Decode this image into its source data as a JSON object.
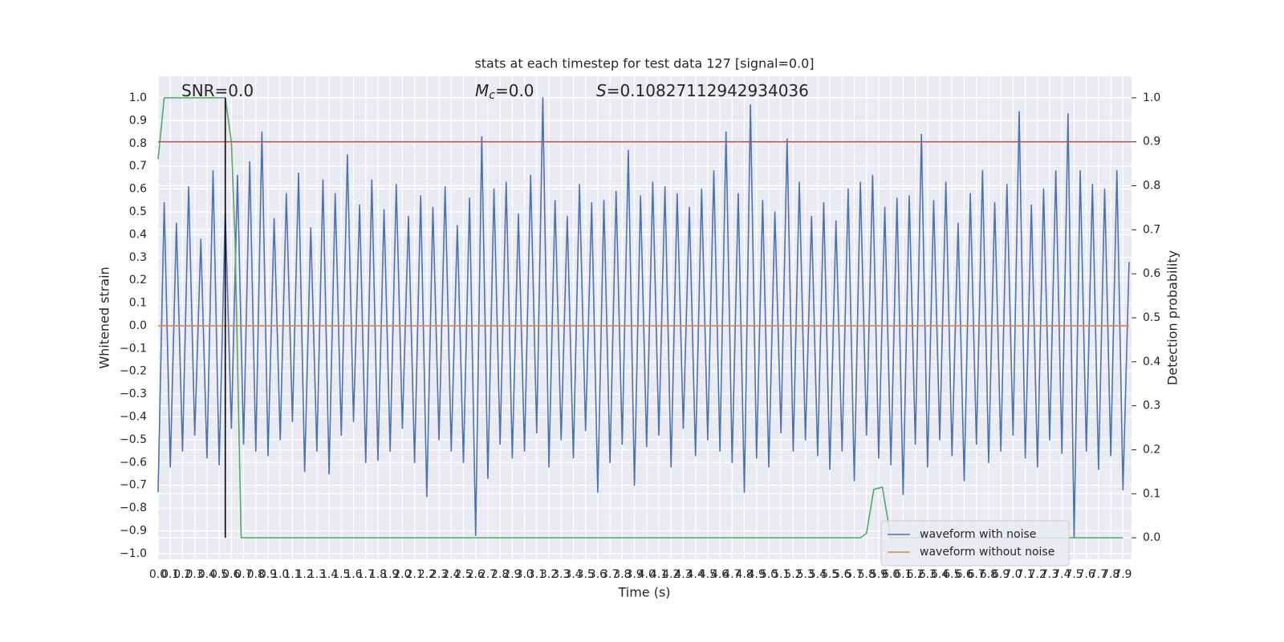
{
  "chart_data": {
    "type": "line",
    "title": "stats at each timestep for test data 127 [signal=0.0]",
    "xlabel": "Time (s)",
    "ylabel": "Whitened strain",
    "y2label": "Detection probability",
    "xlim": [
      0,
      7.97
    ],
    "ylim": [
      -1.025,
      1.095
    ],
    "y2lim": [
      -0.049,
      1.049
    ],
    "grid": true,
    "legend": "lower right",
    "xticks": [
      {
        "value": 0,
        "label": "0.0"
      },
      0.1,
      0.2,
      0.3,
      0.4,
      0.5,
      0.6,
      0.7,
      0.8,
      0.9,
      {
        "value": 1,
        "label": "1.0"
      },
      1.1,
      1.2,
      1.3,
      1.4,
      1.5,
      1.6,
      1.7,
      1.8,
      1.9,
      {
        "value": 2,
        "label": "2.0"
      },
      2.1,
      2.2,
      2.3,
      2.4,
      2.5,
      2.6,
      2.7,
      2.8,
      2.9,
      {
        "value": 3,
        "label": "3.0"
      },
      3.1,
      3.2,
      3.3,
      3.4,
      3.5,
      3.6,
      3.7,
      3.8,
      3.9,
      {
        "value": 4,
        "label": "4.0"
      },
      4.1,
      4.2,
      4.3,
      4.4,
      4.5,
      4.6,
      4.7,
      4.8,
      4.9,
      {
        "value": 5,
        "label": "5.0"
      },
      5.1,
      5.2,
      5.3,
      5.4,
      5.5,
      5.6,
      5.7,
      5.8,
      5.9,
      {
        "value": 6,
        "label": "6.0"
      },
      6.1,
      6.2,
      6.3,
      6.4,
      6.5,
      6.6,
      6.7,
      6.8,
      6.9,
      {
        "value": 7,
        "label": "7.0"
      },
      7.1,
      7.2,
      7.3,
      7.4,
      7.5,
      7.6,
      7.7,
      7.8,
      7.9
    ],
    "yticks": [
      {
        "value": -1,
        "label": "−1.0"
      },
      {
        "value": -0.9,
        "label": "−0.9"
      },
      {
        "value": -0.8,
        "label": "−0.8"
      },
      {
        "value": -0.7,
        "label": "−0.7"
      },
      {
        "value": -0.6,
        "label": "−0.6"
      },
      {
        "value": -0.5,
        "label": "−0.5"
      },
      {
        "value": -0.4,
        "label": "−0.4"
      },
      {
        "value": -0.3,
        "label": "−0.3"
      },
      {
        "value": -0.2,
        "label": "−0.2"
      },
      {
        "value": -0.1,
        "label": "−0.1"
      },
      {
        "value": 0,
        "label": "0.0"
      },
      0.1,
      0.2,
      0.3,
      0.4,
      0.5,
      0.6,
      0.7,
      0.8,
      0.9,
      {
        "value": 1,
        "label": "1.0"
      }
    ],
    "y2ticks": [
      {
        "value": 0,
        "label": "0.0"
      },
      0.1,
      0.2,
      0.3,
      0.4,
      0.5,
      0.6,
      0.7,
      0.8,
      0.9,
      {
        "value": 1,
        "label": "1.0"
      }
    ],
    "series": [
      {
        "name": "waveform with noise",
        "color": "#4c72b0",
        "x": [
          0,
          0.05,
          0.1,
          0.15,
          0.2,
          0.25,
          0.3,
          0.35,
          0.4,
          0.45,
          0.5,
          0.55,
          0.6,
          0.65,
          0.7,
          0.75,
          0.8,
          0.85,
          0.9,
          0.95,
          1,
          1.05,
          1.1,
          1.15,
          1.2,
          1.25,
          1.3,
          1.35,
          1.4,
          1.45,
          1.5,
          1.55,
          1.6,
          1.65,
          1.7,
          1.75,
          1.8,
          1.85,
          1.9,
          1.95,
          2,
          2.05,
          2.1,
          2.15,
          2.2,
          2.25,
          2.3,
          2.35,
          2.4,
          2.45,
          2.5,
          2.55,
          2.6,
          2.65,
          2.7,
          2.75,
          2.8,
          2.85,
          2.9,
          2.95,
          3,
          3.05,
          3.1,
          3.15,
          3.2,
          3.25,
          3.3,
          3.35,
          3.4,
          3.45,
          3.5,
          3.55,
          3.6,
          3.65,
          3.7,
          3.75,
          3.8,
          3.85,
          3.9,
          3.95,
          4,
          4.05,
          4.1,
          4.15,
          4.2,
          4.25,
          4.3,
          4.35,
          4.4,
          4.45,
          4.5,
          4.55,
          4.6,
          4.65,
          4.7,
          4.75,
          4.8,
          4.85,
          4.9,
          4.95,
          5,
          5.05,
          5.1,
          5.15,
          5.2,
          5.25,
          5.3,
          5.35,
          5.4,
          5.45,
          5.5,
          5.55,
          5.6,
          5.65,
          5.7,
          5.75,
          5.8,
          5.85,
          5.9,
          5.95,
          6,
          6.05,
          6.1,
          6.15,
          6.2,
          6.25,
          6.3,
          6.35,
          6.4,
          6.45,
          6.5,
          6.55,
          6.6,
          6.65,
          6.7,
          6.75,
          6.8,
          6.85,
          6.9,
          6.95,
          7,
          7.05,
          7.1,
          7.15,
          7.2,
          7.25,
          7.3,
          7.35,
          7.4,
          7.45,
          7.5,
          7.55,
          7.6,
          7.65,
          7.7,
          7.75,
          7.8,
          7.85,
          7.9,
          7.95
        ],
        "values": [
          -0.73,
          0.54,
          -0.62,
          0.45,
          -0.55,
          0.61,
          -0.48,
          0.38,
          -0.58,
          0.68,
          -0.61,
          0.5,
          -0.45,
          0.66,
          -0.52,
          0.72,
          -0.55,
          0.85,
          -0.57,
          0.47,
          -0.5,
          0.58,
          -0.42,
          0.67,
          -0.64,
          0.43,
          -0.55,
          0.64,
          -0.65,
          0.58,
          -0.48,
          0.75,
          -0.42,
          0.53,
          -0.6,
          0.64,
          -0.59,
          0.51,
          -0.55,
          0.62,
          -0.45,
          0.48,
          -0.6,
          0.57,
          -0.75,
          0.52,
          -0.5,
          0.61,
          -0.55,
          0.44,
          -0.6,
          0.56,
          -0.92,
          0.83,
          -0.67,
          0.6,
          -0.52,
          0.63,
          -0.58,
          0.49,
          -0.55,
          0.66,
          -0.47,
          1.0,
          -0.62,
          0.55,
          -0.5,
          0.48,
          -0.58,
          0.62,
          -0.46,
          0.54,
          -0.73,
          0.55,
          -0.6,
          0.59,
          -0.52,
          0.77,
          -0.7,
          0.57,
          -0.53,
          0.63,
          -0.48,
          0.61,
          -0.62,
          0.58,
          -0.45,
          0.52,
          -0.57,
          0.6,
          -0.5,
          0.68,
          -0.55,
          0.85,
          -0.6,
          0.58,
          -0.73,
          0.97,
          -0.58,
          0.55,
          -0.62,
          0.5,
          -0.47,
          0.82,
          -0.55,
          0.63,
          -0.5,
          0.48,
          -0.57,
          0.54,
          -0.63,
          0.46,
          -0.55,
          0.6,
          -0.68,
          0.63,
          -0.48,
          0.66,
          -0.58,
          0.52,
          -0.61,
          0.56,
          -0.74,
          0.57,
          -0.52,
          0.84,
          -0.62,
          0.55,
          -0.5,
          0.63,
          -0.57,
          0.45,
          -0.68,
          0.58,
          -0.52,
          0.68,
          -0.6,
          0.54,
          -0.55,
          0.62,
          -0.48,
          0.94,
          -0.58,
          0.53,
          -0.62,
          0.6,
          -0.5,
          0.68,
          -0.56,
          0.93,
          -0.93,
          0.68,
          -0.55,
          0.62,
          -0.63,
          0.6,
          -0.57,
          0.68,
          -0.72,
          0.28
        ]
      },
      {
        "name": "waveform without noise",
        "color": "#dd8452",
        "x": [
          0,
          7.95
        ],
        "values": [
          0,
          0
        ]
      },
      {
        "color": "#55a868",
        "axis": "y2",
        "x": [
          0,
          0.05,
          0.1,
          0.2,
          0.55,
          0.6,
          0.63,
          0.68,
          5.75,
          5.8,
          5.86,
          5.93,
          6.0,
          7.9
        ],
        "values": [
          0.86,
          1.0,
          1.0,
          1.0,
          1.0,
          0.9,
          0.68,
          0,
          0,
          0.01,
          0.11,
          0.115,
          0,
          0
        ]
      }
    ],
    "hlines": [
      {
        "y": 0.9,
        "axis": "y2",
        "color": "#c44e52"
      }
    ],
    "vlines": [
      {
        "x": 0.55,
        "ymin": 0,
        "ymax": 1,
        "axis": "y2",
        "color": "#000000"
      }
    ],
    "annotations": [
      {
        "text": "SNR=0.0"
      },
      {
        "italic": "M",
        "sub": "c",
        "text": "=0.0"
      },
      {
        "italic": "S",
        "text": "=0.10827112942934036"
      }
    ]
  }
}
